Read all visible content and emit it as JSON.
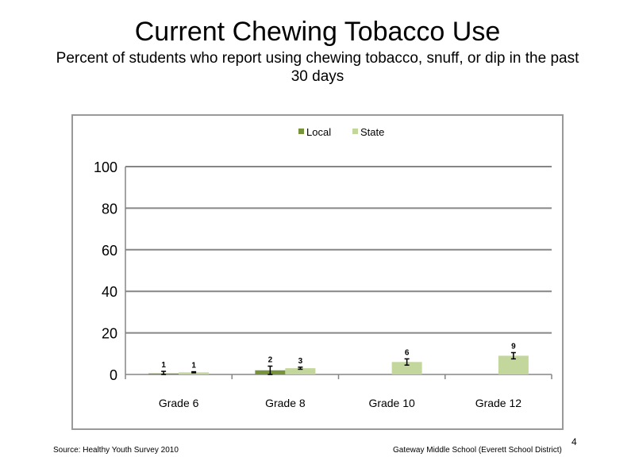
{
  "slide": {
    "title": "Current Chewing Tobacco Use",
    "subtitle": "Percent of students who report using chewing tobacco, snuff, or dip in the past 30 days",
    "source": "Source: Healthy Youth Survey 2010",
    "school": "Gateway Middle  School (Everett School District)",
    "page_number": "4"
  },
  "chart_data": {
    "type": "bar",
    "title": "",
    "xlabel": "",
    "ylabel": "",
    "categories": [
      "Grade 6",
      "Grade 8",
      "Grade 10",
      "Grade 12"
    ],
    "series": [
      {
        "name": "Local",
        "color": "#77933c",
        "values": [
          0.5,
          2,
          null,
          null
        ],
        "labels": [
          "1",
          "2",
          "",
          ""
        ],
        "error_low": [
          0,
          0,
          null,
          null
        ],
        "error_high": [
          1.5,
          4,
          null,
          null
        ]
      },
      {
        "name": "State",
        "color": "#c3d69b",
        "values": [
          1,
          3,
          6,
          9
        ],
        "labels": [
          "1",
          "3",
          "6",
          "9"
        ],
        "error_low": [
          0.8,
          2.5,
          4.5,
          7.5
        ],
        "error_high": [
          1.3,
          3.5,
          7.5,
          10.5
        ]
      }
    ],
    "ylim": [
      0,
      100
    ],
    "yticks": [
      0,
      20,
      40,
      60,
      80,
      100
    ],
    "grid": true,
    "legend_position": "top"
  }
}
